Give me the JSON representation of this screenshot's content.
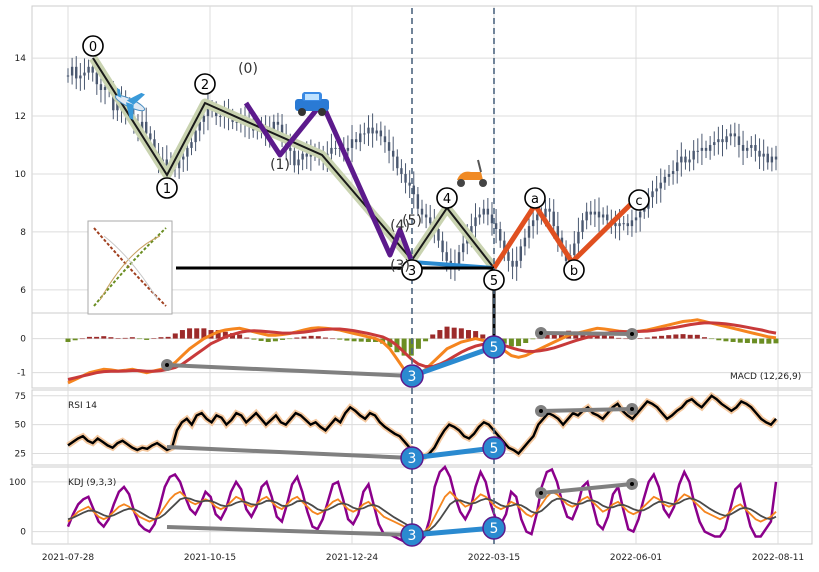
{
  "chart_data": {
    "type": "line",
    "x_ticks": [
      "2021-07-28",
      "2021-10-15",
      "2021-12-24",
      "2022-03-15",
      "2022-06-01",
      "2022-08-11"
    ],
    "panels": {
      "price": {
        "ylim": [
          5.2,
          15.8
        ],
        "y_ticks": [
          6,
          8,
          10,
          12,
          14
        ],
        "close": [
          13.4,
          13.7,
          13.3,
          13.4,
          13.5,
          13.7,
          13.5,
          13.1,
          12.9,
          13.0,
          12.9,
          12.2,
          12.6,
          12.2,
          12.4,
          12.0,
          11.7,
          11.5,
          11.8,
          11.4,
          11.2,
          10.7,
          10.4,
          10.5,
          10.3,
          10.5,
          10.2,
          10.5,
          10.6,
          10.9,
          11.1,
          11.5,
          11.8,
          12.0,
          12.3,
          12.2,
          12.0,
          12.0,
          12.1,
          12.0,
          11.8,
          11.8,
          11.9,
          11.7,
          11.8,
          11.5,
          11.6,
          11.6,
          11.4,
          11.5,
          11.8,
          11.7,
          11.3,
          10.9,
          10.8,
          10.3,
          10.5,
          10.7,
          10.6,
          10.7,
          10.8,
          10.6,
          10.5,
          10.7,
          10.9,
          10.9,
          10.9,
          10.8,
          10.9,
          11.2,
          11.1,
          11.4,
          11.4,
          11.6,
          11.4,
          11.5,
          11.3,
          11.1,
          10.8,
          10.6,
          10.2,
          10.0,
          9.7,
          9.6,
          9.3,
          8.8,
          8.6,
          8.5,
          8.3,
          8.1,
          7.7,
          7.3,
          7.0,
          6.8,
          6.9,
          7.3,
          7.6,
          7.9,
          8.2,
          8.5,
          8.6,
          8.8,
          8.6,
          8.3,
          8.1,
          7.7,
          7.3,
          7.0,
          6.8,
          7.0,
          7.5,
          7.8,
          8.2,
          8.4,
          8.6,
          8.5,
          8.8,
          8.7,
          8.2,
          7.8,
          7.4,
          7.0,
          7.2,
          7.6,
          8.0,
          8.4,
          8.7,
          8.6,
          8.7,
          8.5,
          8.6,
          8.4,
          8.3,
          8.2,
          8.3,
          8.3,
          8.2,
          8.4,
          8.5,
          8.7,
          8.8,
          9.2,
          9.4,
          9.5,
          9.7,
          9.9,
          10.0,
          10.1,
          10.4,
          10.6,
          10.4,
          10.5,
          10.8,
          10.8,
          10.9,
          10.8,
          11.0,
          11.1,
          11.2,
          11.1,
          11.3,
          11.4,
          11.3,
          11.0,
          10.8,
          10.9,
          11.0,
          10.8,
          10.6,
          10.7,
          10.4,
          10.6,
          10.5
        ]
      },
      "macd": {
        "label": "MACD (12,26,9)",
        "ylim": [
          -1.45,
          0.75
        ],
        "y_ticks": [
          -1,
          0
        ],
        "macd": [
          -1.3,
          -1.2,
          -1.1,
          -1.0,
          -0.95,
          -0.9,
          -0.92,
          -0.95,
          -0.93,
          -0.9,
          -0.95,
          -1.0,
          -0.95,
          -0.9,
          -0.85,
          -0.7,
          -0.5,
          -0.3,
          -0.15,
          0.0,
          0.1,
          0.2,
          0.25,
          0.28,
          0.3,
          0.25,
          0.2,
          0.15,
          0.1,
          0.1,
          0.12,
          0.15,
          0.2,
          0.25,
          0.3,
          0.32,
          0.3,
          0.28,
          0.25,
          0.2,
          0.15,
          0.1,
          0.05,
          0.0,
          -0.1,
          -0.3,
          -0.6,
          -0.9,
          -1.1,
          -1.05,
          -0.9,
          -0.7,
          -0.5,
          -0.3,
          -0.2,
          -0.1,
          -0.05,
          0.0,
          -0.05,
          -0.1,
          -0.2,
          -0.35,
          -0.5,
          -0.55,
          -0.5,
          -0.4,
          -0.3,
          -0.2,
          -0.1,
          0.0,
          0.1,
          0.15,
          0.2,
          0.25,
          0.3,
          0.28,
          0.25,
          0.22,
          0.2,
          0.2,
          0.22,
          0.25,
          0.3,
          0.35,
          0.4,
          0.45,
          0.5,
          0.52,
          0.55,
          0.5,
          0.45,
          0.4,
          0.35,
          0.3,
          0.25,
          0.2,
          0.15,
          0.1,
          0.05,
          0.02
        ],
        "signal": [
          -1.2,
          -1.15,
          -1.1,
          -1.05,
          -1.0,
          -0.97,
          -0.96,
          -0.96,
          -0.95,
          -0.94,
          -0.94,
          -0.96,
          -0.96,
          -0.94,
          -0.9,
          -0.85,
          -0.75,
          -0.6,
          -0.45,
          -0.3,
          -0.15,
          -0.05,
          0.05,
          0.12,
          0.18,
          0.22,
          0.23,
          0.22,
          0.2,
          0.18,
          0.16,
          0.16,
          0.17,
          0.19,
          0.22,
          0.25,
          0.27,
          0.28,
          0.28,
          0.26,
          0.23,
          0.19,
          0.15,
          0.1,
          0.05,
          -0.05,
          -0.2,
          -0.4,
          -0.6,
          -0.75,
          -0.82,
          -0.82,
          -0.75,
          -0.65,
          -0.52,
          -0.4,
          -0.3,
          -0.22,
          -0.17,
          -0.15,
          -0.16,
          -0.2,
          -0.27,
          -0.33,
          -0.37,
          -0.38,
          -0.36,
          -0.32,
          -0.27,
          -0.2,
          -0.13,
          -0.06,
          0.0,
          0.06,
          0.11,
          0.15,
          0.18,
          0.2,
          0.2,
          0.2,
          0.21,
          0.22,
          0.24,
          0.27,
          0.3,
          0.33,
          0.37,
          0.41,
          0.44,
          0.46,
          0.46,
          0.45,
          0.43,
          0.4,
          0.37,
          0.33,
          0.29,
          0.25,
          0.2,
          0.16
        ],
        "hist": [
          -0.1,
          -0.05,
          0.0,
          0.05,
          0.05,
          0.07,
          0.04,
          0.01,
          0.02,
          0.04,
          -0.01,
          -0.04,
          0.01,
          0.04,
          0.05,
          0.15,
          0.25,
          0.3,
          0.3,
          0.3,
          0.25,
          0.25,
          0.2,
          0.16,
          0.12,
          0.03,
          -0.03,
          -0.07,
          -0.1,
          -0.08,
          -0.04,
          -0.01,
          0.03,
          0.06,
          0.08,
          0.07,
          0.03,
          0.0,
          -0.03,
          -0.06,
          -0.08,
          -0.09,
          -0.1,
          -0.1,
          -0.15,
          -0.25,
          -0.4,
          -0.5,
          -0.5,
          -0.3,
          -0.08,
          0.12,
          0.25,
          0.35,
          0.32,
          0.3,
          0.25,
          0.22,
          0.12,
          0.05,
          -0.04,
          -0.15,
          -0.23,
          -0.22,
          -0.13,
          -0.02,
          0.06,
          0.12,
          0.17,
          0.2,
          0.23,
          0.21,
          0.2,
          0.19,
          0.19,
          0.13,
          0.07,
          0.02,
          0.0,
          0.0,
          0.01,
          0.03,
          0.06,
          0.08,
          0.1,
          0.12,
          0.13,
          0.11,
          0.11,
          0.04,
          -0.01,
          -0.05,
          -0.08,
          -0.1,
          -0.12,
          -0.13,
          -0.14,
          -0.15,
          -0.15,
          -0.14
        ]
      },
      "rsi": {
        "label": "RSI 14",
        "ylim": [
          15,
          80
        ],
        "y_ticks": [
          25,
          50,
          75
        ],
        "values": [
          32,
          35,
          38,
          40,
          36,
          34,
          38,
          35,
          32,
          30,
          34,
          36,
          33,
          30,
          28,
          30,
          29,
          32,
          34,
          31,
          28,
          30,
          45,
          52,
          55,
          50,
          58,
          60,
          55,
          52,
          58,
          56,
          50,
          54,
          60,
          58,
          52,
          56,
          60,
          55,
          50,
          54,
          58,
          52,
          50,
          55,
          60,
          58,
          54,
          50,
          52,
          48,
          45,
          50,
          55,
          52,
          60,
          65,
          62,
          58,
          55,
          60,
          58,
          52,
          48,
          45,
          42,
          40,
          35,
          30,
          28,
          25,
          22,
          25,
          30,
          38,
          45,
          50,
          48,
          45,
          40,
          38,
          42,
          48,
          52,
          50,
          45,
          40,
          35,
          30,
          28,
          25,
          30,
          35,
          40,
          50,
          55,
          60,
          58,
          55,
          50,
          55,
          60,
          58,
          62,
          65,
          60,
          58,
          55,
          60,
          65,
          68,
          62,
          58,
          55,
          60,
          65,
          70,
          68,
          65,
          60,
          55,
          58,
          62,
          65,
          70,
          72,
          68,
          65,
          70,
          75,
          72,
          68,
          65,
          62,
          65,
          70,
          68,
          65,
          60,
          55,
          52,
          50,
          55
        ]
      },
      "kdj": {
        "label": "KDJ (9,3,3)",
        "ylim": [
          -25,
          130
        ],
        "y_ticks": [
          0,
          100
        ],
        "k": [
          20,
          30,
          40,
          45,
          50,
          40,
          30,
          25,
          30,
          40,
          50,
          55,
          50,
          40,
          30,
          25,
          20,
          25,
          35,
          50,
          65,
          75,
          80,
          70,
          60,
          55,
          60,
          65,
          60,
          50,
          45,
          50,
          60,
          70,
          65,
          55,
          50,
          55,
          65,
          70,
          60,
          50,
          45,
          55,
          65,
          70,
          60,
          50,
          40,
          35,
          40,
          50,
          60,
          65,
          55,
          45,
          40,
          45,
          55,
          60,
          50,
          40,
          30,
          25,
          20,
          15,
          10,
          5,
          0,
          -5,
          0,
          10,
          30,
          50,
          70,
          80,
          70,
          60,
          50,
          55,
          65,
          75,
          70,
          60,
          50,
          45,
          50,
          60,
          55,
          45,
          35,
          30,
          40,
          55,
          70,
          80,
          75,
          65,
          55,
          50,
          55,
          65,
          70,
          60,
          50,
          40,
          45,
          55,
          60,
          50,
          40,
          35,
          40,
          50,
          60,
          70,
          65,
          55,
          50,
          55,
          65,
          75,
          70,
          60,
          50,
          40,
          35,
          30,
          25,
          30,
          40,
          50,
          55,
          45,
          35,
          25,
          20,
          25,
          30,
          40
        ],
        "j": [
          10,
          35,
          55,
          65,
          70,
          45,
          20,
          10,
          25,
          55,
          80,
          90,
          75,
          40,
          15,
          5,
          0,
          15,
          50,
          90,
          110,
          115,
          100,
          70,
          45,
          35,
          55,
          80,
          70,
          35,
          25,
          45,
          80,
          100,
          85,
          45,
          30,
          50,
          90,
          100,
          70,
          30,
          20,
          55,
          95,
          110,
          80,
          40,
          10,
          5,
          25,
          60,
          95,
          100,
          65,
          25,
          15,
          35,
          80,
          95,
          55,
          15,
          -5,
          -5,
          -10,
          -15,
          -20,
          -20,
          -15,
          -20,
          -10,
          25,
          90,
          120,
          130,
          110,
          70,
          40,
          25,
          45,
          90,
          120,
          100,
          55,
          25,
          15,
          35,
          80,
          70,
          25,
          0,
          -5,
          35,
          90,
          120,
          125,
          100,
          60,
          30,
          25,
          50,
          90,
          100,
          55,
          15,
          5,
          30,
          75,
          90,
          45,
          5,
          0,
          25,
          65,
          100,
          115,
          90,
          45,
          30,
          50,
          95,
          120,
          100,
          55,
          20,
          0,
          -5,
          -10,
          -10,
          5,
          45,
          85,
          95,
          50,
          10,
          -10,
          -10,
          5,
          20,
          100
        ],
        "d": [
          25,
          28,
          33,
          38,
          42,
          42,
          38,
          33,
          30,
          33,
          38,
          43,
          46,
          45,
          40,
          34,
          28,
          25,
          28,
          35,
          45,
          55,
          65,
          68,
          66,
          62,
          60,
          62,
          62,
          58,
          53,
          51,
          53,
          58,
          61,
          59,
          55,
          54,
          57,
          62,
          62,
          58,
          52,
          51,
          55,
          61,
          62,
          58,
          52,
          45,
          42,
          44,
          49,
          55,
          57,
          54,
          48,
          45,
          47,
          52,
          54,
          50,
          43,
          36,
          29,
          23,
          17,
          11,
          6,
          1,
          0,
          3,
          12,
          25,
          40,
          55,
          62,
          63,
          59,
          56,
          58,
          63,
          66,
          64,
          59,
          53,
          50,
          52,
          55,
          53,
          47,
          40,
          37,
          42,
          51,
          61,
          66,
          66,
          62,
          57,
          55,
          57,
          62,
          63,
          59,
          52,
          48,
          49,
          53,
          54,
          50,
          45,
          42,
          43,
          48,
          55,
          60,
          60,
          57,
          55,
          58,
          64,
          67,
          65,
          60,
          53,
          46,
          40,
          35,
          32,
          34,
          40,
          46,
          48,
          45,
          39,
          32,
          27,
          25,
          30
        ]
      }
    },
    "wave_labels": {
      "primary": [
        "0",
        "1",
        "2",
        "3",
        "4",
        "5",
        "a",
        "b",
        "c"
      ],
      "secondary": [
        "(0)",
        "(1)",
        "(2)",
        "(3)",
        "(4)",
        "(5)"
      ]
    },
    "divergence_labels": [
      "3",
      "5"
    ],
    "colors": {
      "candle": "#4a5870",
      "wave_primary": "#1a1a1a",
      "wave_halo": "#c9d3b0",
      "wave_secondary": "#5c1a8c",
      "wave_correction": "#e05020",
      "wave_blue": "#2a8ad0",
      "support_line": "#000000",
      "divergence": "#808080",
      "vline": "#4e6680",
      "macd_line": "#f5851f",
      "signal_line": "#c83a3a",
      "hist_pos": "#9c2a2a",
      "hist_neg": "#6b8e23",
      "rsi_line": "#000000",
      "rsi_halo": "#f5c9a0",
      "kdj_k": "#f5851f",
      "kdj_d": "#4a4a4a",
      "kdj_j": "#8b008b",
      "grid": "#dcdcdc"
    },
    "icons": [
      "airplane-icon",
      "car-icon",
      "scooter-icon",
      "chart-thumbnail"
    ]
  }
}
